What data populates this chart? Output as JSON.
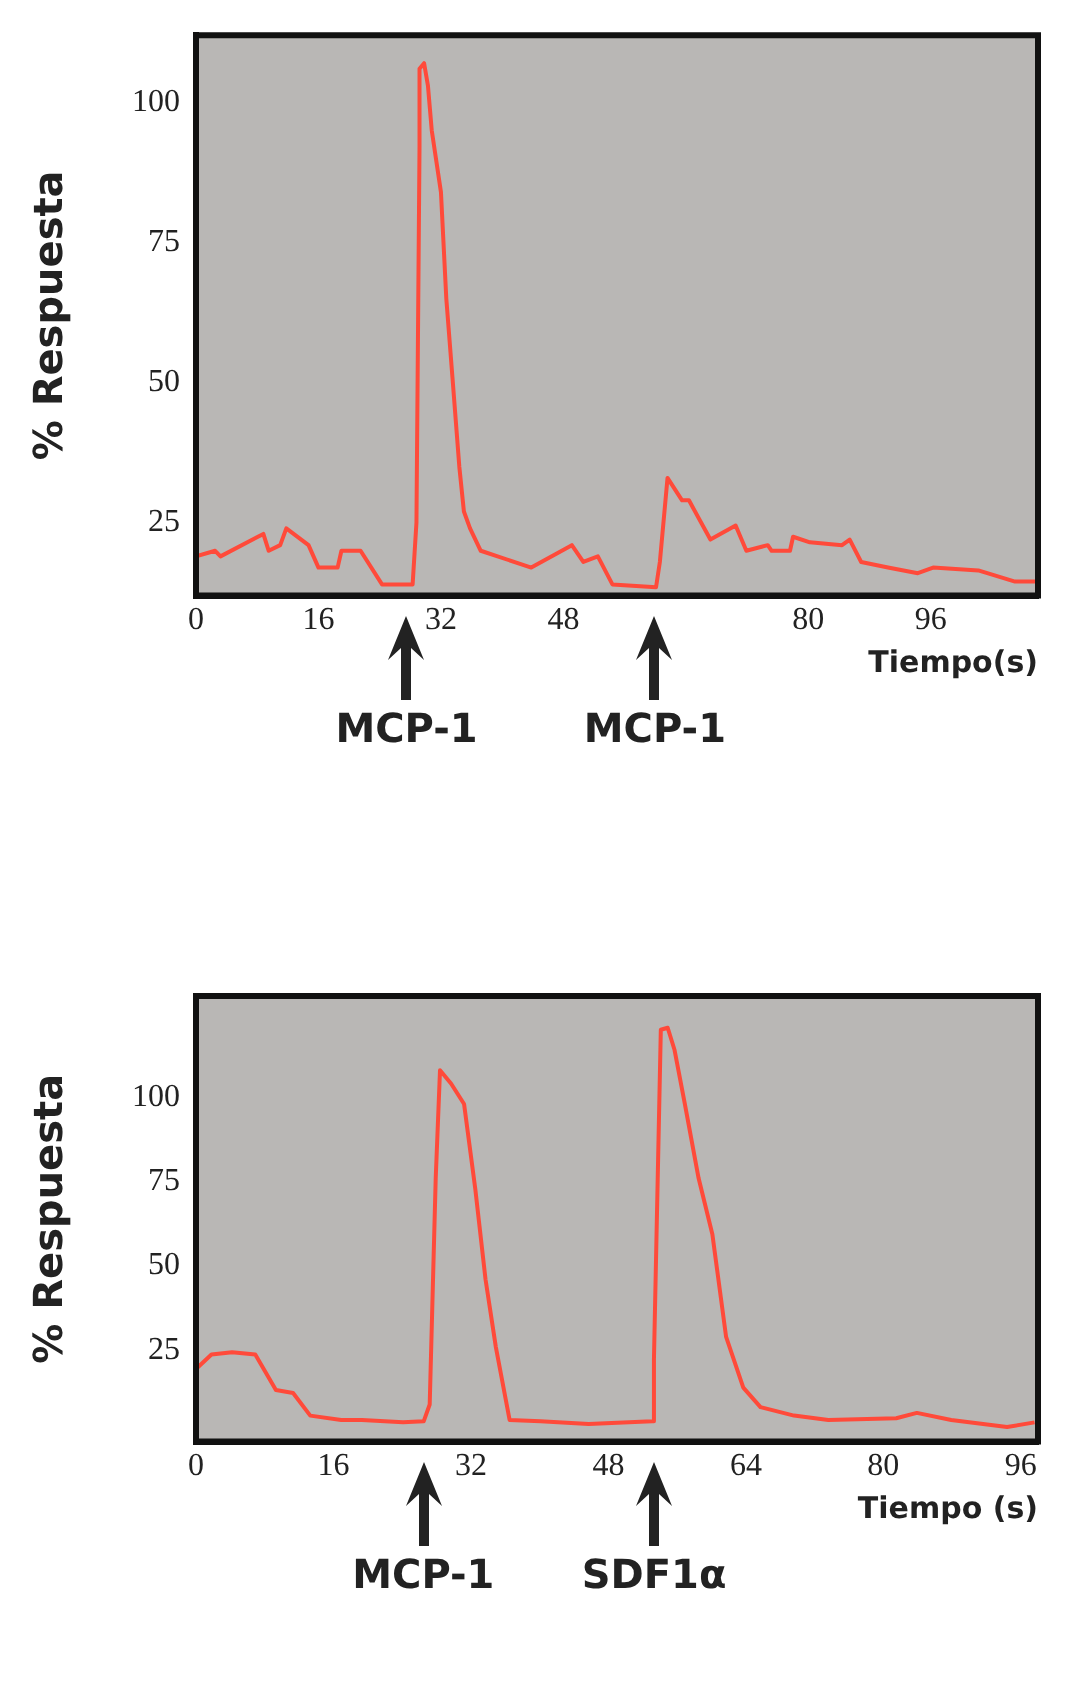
{
  "chart_data": [
    {
      "type": "line",
      "ylabel": "% Respuesta",
      "xlabel": "Tiempo(s)",
      "xlim": [
        0,
        110
      ],
      "xticks": [
        0,
        16,
        32,
        48,
        80,
        96
      ],
      "ylim": [
        12,
        112
      ],
      "yticks": [
        25,
        50,
        75,
        100
      ],
      "legend": false,
      "marker": "none",
      "annotations": [
        "MCP-1",
        "MCP-1"
      ],
      "series": [
        {
          "color": "#ff4a3a",
          "x": [
            0,
            2.5,
            3.2,
            8.8,
            9.5,
            11,
            11.8,
            14.7,
            16,
            18.5,
            19,
            21.5,
            24.3,
            28.3,
            28.8,
            29.2,
            29.2,
            29.8,
            30.3,
            30.8,
            32,
            32.7,
            33.5,
            34.4,
            35,
            35.8,
            37.2,
            39.4,
            43.8,
            49.1,
            50.6,
            52.5,
            54.4,
            60.1,
            60.6,
            61.6,
            63.5,
            64.4,
            67.2,
            70.5,
            71.9,
            74.7,
            75.2,
            77.6,
            78,
            80.2,
            84.4,
            85.4,
            86.9,
            90.4,
            94.3,
            96.3,
            102.2,
            107,
            110
          ],
          "values": [
            19,
            20,
            19,
            23,
            20,
            21,
            24,
            21,
            17,
            17,
            20,
            20,
            14,
            14,
            25,
            92,
            106,
            107,
            103,
            95,
            84,
            65,
            51,
            35,
            27,
            24,
            20,
            19,
            17,
            21,
            18,
            19,
            14,
            13.5,
            18,
            33,
            29,
            29,
            22,
            24.5,
            20,
            21,
            20,
            20,
            22.5,
            21.5,
            21,
            22,
            18,
            17,
            16,
            17,
            16.5,
            14.5,
            14.5
          ]
        }
      ]
    },
    {
      "type": "line",
      "ylabel": "% Respuesta",
      "xlabel": "Tiempo (s)",
      "xlim": [
        0,
        98
      ],
      "xticks": [
        0,
        16,
        32,
        48,
        64,
        80,
        96
      ],
      "ylim": [
        -2,
        130
      ],
      "yticks": [
        25,
        50,
        75,
        100
      ],
      "legend": false,
      "marker": "none",
      "annotations": [
        "MCP-1",
        "SDF1α"
      ],
      "series": [
        {
          "color": "#ff4a3a",
          "x": [
            0,
            1.8,
            4.2,
            6.9,
            9.3,
            11.3,
            13.3,
            16.9,
            19.3,
            24.1,
            26.5,
            27.2,
            27.9,
            28.4,
            29.7,
            31.2,
            32.5,
            33.7,
            34.9,
            36.5,
            40.1,
            45.7,
            53.1,
            53.3,
            54.1,
            54.9,
            55.7,
            56.9,
            58.5,
            60.1,
            61.7,
            63.7,
            65.7,
            69.6,
            73.6,
            81.5,
            83.9,
            87.9,
            94.4,
            97.6
          ],
          "values": [
            19.5,
            23.8,
            24.5,
            23.8,
            13.3,
            12.4,
            5.7,
            4.4,
            4.4,
            3.7,
            4,
            9,
            76,
            108,
            104,
            98,
            73,
            46,
            26,
            4.4,
            4,
            3.2,
            4,
            22.5,
            120,
            120.6,
            114,
            98,
            76,
            59.4,
            29,
            14,
            8.2,
            5.7,
            4.4,
            4.9,
            6.5,
            4.4,
            2.3,
            3.7
          ]
        }
      ]
    }
  ]
}
